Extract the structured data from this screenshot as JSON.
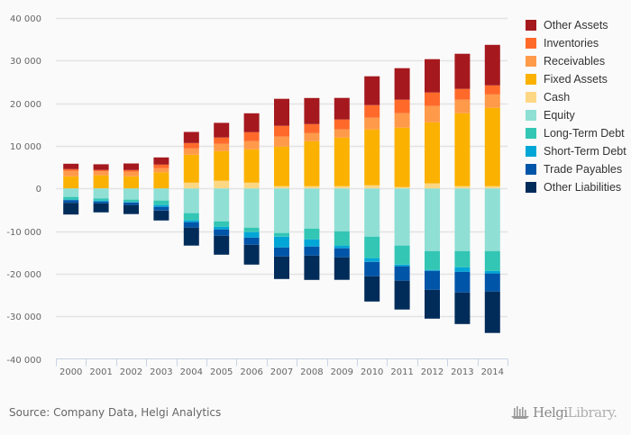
{
  "chart_data": {
    "type": "bar",
    "stacked": true,
    "title": "",
    "xlabel": "",
    "ylabel": "",
    "ylim": [
      -40000,
      40000
    ],
    "yticks": [
      40000,
      30000,
      20000,
      10000,
      0,
      -10000,
      -20000,
      -30000,
      -40000
    ],
    "ytick_labels": [
      "40 000",
      "30 000",
      "20 000",
      "10 000",
      "0",
      "-10 000",
      "-20 000",
      "-30 000",
      "-40 000"
    ],
    "grid": true,
    "legend_position": "right",
    "categories": [
      "2000",
      "2001",
      "2002",
      "2003",
      "2004",
      "2005",
      "2006",
      "2007",
      "2008",
      "2009",
      "2010",
      "2011",
      "2012",
      "2013",
      "2014"
    ],
    "series": [
      {
        "name": "Cash",
        "side": "asset",
        "color": "#fdd784",
        "values": [
          0,
          0,
          0,
          0,
          1370,
          1800,
          1370,
          530,
          530,
          530,
          740,
          320,
          1160,
          530,
          530
        ]
      },
      {
        "name": "Fixed Assets",
        "side": "asset",
        "color": "#fbb100",
        "values": [
          2850,
          3070,
          2850,
          3800,
          6550,
          6980,
          7820,
          9300,
          10570,
          11420,
          13110,
          13950,
          14380,
          17120,
          18390
        ]
      },
      {
        "name": "Receivables",
        "side": "asset",
        "color": "#ff9a4a",
        "values": [
          1270,
          950,
          1060,
          950,
          1480,
          1690,
          1900,
          2330,
          1900,
          1900,
          2750,
          3380,
          3810,
          3170,
          3170
        ]
      },
      {
        "name": "Inventories",
        "side": "asset",
        "color": "#ff6a2a",
        "values": [
          420,
          320,
          420,
          850,
          1270,
          1480,
          2110,
          2540,
          2110,
          2330,
          2960,
          3170,
          3170,
          2540,
          2110
        ]
      },
      {
        "name": "Other Assets",
        "side": "asset",
        "color": "#a5191e",
        "values": [
          1270,
          1330,
          1540,
          1690,
          2600,
          3440,
          4440,
          6340,
          6130,
          5070,
          6770,
          7400,
          7820,
          8250,
          9510
        ]
      },
      {
        "name": "Equity",
        "side": "liability",
        "color": "#8fdfd5",
        "values": [
          -2000,
          -2330,
          -2640,
          -2850,
          -5810,
          -7720,
          -9200,
          -10460,
          -9410,
          -10040,
          -11310,
          -13420,
          -14690,
          -14690,
          -14690
        ]
      },
      {
        "name": "Long-Term Debt",
        "side": "liability",
        "color": "#33c6b4",
        "values": [
          -630,
          -530,
          -530,
          -1060,
          -1690,
          -1270,
          -1060,
          -850,
          -2540,
          -3380,
          -5070,
          -4440,
          -4440,
          -3810,
          -4650
        ]
      },
      {
        "name": "Short-Term Debt",
        "side": "liability",
        "color": "#00a6d6",
        "values": [
          -110,
          -210,
          -110,
          -420,
          -420,
          -630,
          -1270,
          -2540,
          -1690,
          -630,
          -850,
          -420,
          -210,
          -1060,
          -630
        ]
      },
      {
        "name": "Trade Payables",
        "side": "liability",
        "color": "#0055a8",
        "values": [
          -630,
          -420,
          -630,
          -850,
          -1270,
          -1480,
          -1690,
          -2110,
          -2110,
          -2110,
          -3380,
          -3380,
          -4440,
          -4860,
          -4230
        ]
      },
      {
        "name": "Other Liabilities",
        "side": "liability",
        "color": "#012c5a",
        "values": [
          -2750,
          -2110,
          -2110,
          -2330,
          -4230,
          -4440,
          -4650,
          -5290,
          -5710,
          -5290,
          -5920,
          -6770,
          -6770,
          -7400,
          -9720
        ]
      }
    ],
    "legend_order": [
      "Other Assets",
      "Inventories",
      "Receivables",
      "Fixed Assets",
      "Cash",
      "Equity",
      "Long-Term Debt",
      "Short-Term Debt",
      "Trade Payables",
      "Other Liabilities"
    ]
  },
  "footer": {
    "source": "Source: Company Data, Helgi Analytics",
    "logo_bold": "Helgi",
    "logo_light": "Library."
  },
  "colors": {
    "gridline": "#e3e3e3",
    "axis": "#c8d3e6",
    "background": "#fafafa"
  }
}
